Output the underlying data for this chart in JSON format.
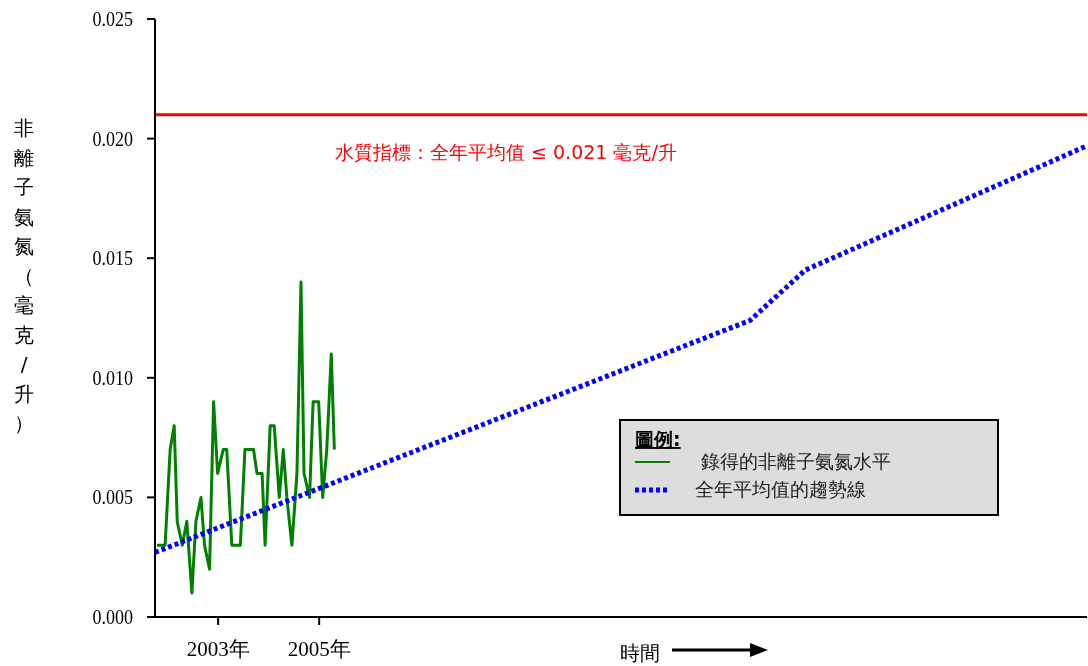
{
  "chart_data": {
    "type": "line",
    "ylabel": "非離子氨氮（毫克/升）",
    "xlabel": "時間",
    "legend_title": "圖例:",
    "legend": "right",
    "xlim": [
      2001.75,
      2020.2
    ],
    "ylim": [
      0,
      0.025
    ],
    "xticks": [
      {
        "value": 2003,
        "label": "2003年"
      },
      {
        "value": 2005,
        "label": "2005年"
      }
    ],
    "yticks": [
      {
        "value": 0,
        "label": "0.000"
      },
      {
        "value": 0.005,
        "label": "0.005"
      },
      {
        "value": 0.01,
        "label": "0.010"
      },
      {
        "value": 0.015,
        "label": "0.015"
      },
      {
        "value": 0.02,
        "label": "0.020"
      },
      {
        "value": 0.025,
        "label": "0.025"
      }
    ],
    "ref_lines": [
      {
        "axis": "y",
        "value": 0.021,
        "label": "水質指標：全年平均值 ≤ 0.021 毫克/升",
        "color": "#ff0000"
      }
    ],
    "series": [
      {
        "name": "錄得的非離子氨氮水平",
        "color": "#008000",
        "line_style": "solid",
        "x": [
          2001.79,
          2001.95,
          2002.05,
          2002.13,
          2002.19,
          2002.29,
          2002.38,
          2002.48,
          2002.56,
          2002.66,
          2002.73,
          2002.83,
          2002.91,
          2002.99,
          2003.1,
          2003.17,
          2003.27,
          2003.44,
          2003.53,
          2003.7,
          2003.77,
          2003.87,
          2003.93,
          2004.03,
          2004.11,
          2004.21,
          2004.29,
          2004.36,
          2004.46,
          2004.56,
          2004.64,
          2004.7,
          2004.81,
          2004.88,
          2004.99,
          2005.07,
          2005.15,
          2005.24,
          2005.3
        ],
        "values": [
          0.003,
          0.003,
          0.007,
          0.008,
          0.004,
          0.003,
          0.004,
          0.001,
          0.004,
          0.005,
          0.003,
          0.002,
          0.009,
          0.006,
          0.007,
          0.007,
          0.003,
          0.003,
          0.007,
          0.007,
          0.006,
          0.006,
          0.003,
          0.008,
          0.008,
          0.005,
          0.007,
          0.005,
          0.003,
          0.006,
          0.014,
          0.006,
          0.005,
          0.009,
          0.009,
          0.005,
          0.007,
          0.011,
          0.007
        ]
      },
      {
        "name": "全年平均值的趨勢線",
        "color": "#0000ff",
        "line_style": "dotted",
        "x": [
          2001.75,
          2013.53,
          2014.62,
          2020.2
        ],
        "values": [
          0.0027,
          0.0124,
          0.0145,
          0.0197
        ]
      }
    ]
  }
}
